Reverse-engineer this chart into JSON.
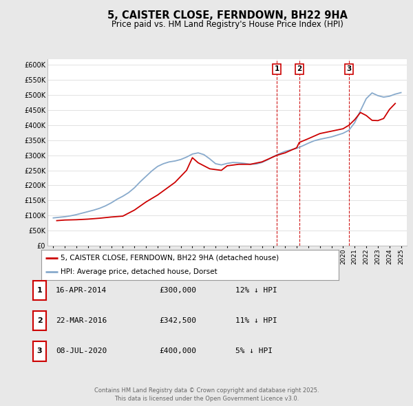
{
  "title": "5, CAISTER CLOSE, FERNDOWN, BH22 9HA",
  "subtitle": "Price paid vs. HM Land Registry's House Price Index (HPI)",
  "legend_label_red": "5, CAISTER CLOSE, FERNDOWN, BH22 9HA (detached house)",
  "legend_label_blue": "HPI: Average price, detached house, Dorset",
  "footer": "Contains HM Land Registry data © Crown copyright and database right 2025.\nThis data is licensed under the Open Government Licence v3.0.",
  "transactions": [
    {
      "num": 1,
      "date": "16-APR-2014",
      "price": "£300,000",
      "hpi": "12% ↓ HPI",
      "year": 2014.29
    },
    {
      "num": 2,
      "date": "22-MAR-2016",
      "price": "£342,500",
      "hpi": "11% ↓ HPI",
      "year": 2016.22
    },
    {
      "num": 3,
      "date": "08-JUL-2020",
      "price": "£400,000",
      "hpi": "5% ↓ HPI",
      "year": 2020.52
    }
  ],
  "ylim": [
    0,
    620000
  ],
  "yticks": [
    0,
    50000,
    100000,
    150000,
    200000,
    250000,
    300000,
    350000,
    400000,
    450000,
    500000,
    550000,
    600000
  ],
  "color_red": "#cc0000",
  "color_blue": "#88aacc",
  "background_color": "#e8e8e8",
  "plot_bg": "#ffffff",
  "hpi_x": [
    1995,
    1995.5,
    1996,
    1996.5,
    1997,
    1997.5,
    1998,
    1998.5,
    1999,
    1999.5,
    2000,
    2000.5,
    2001,
    2001.5,
    2002,
    2002.5,
    2003,
    2003.5,
    2004,
    2004.5,
    2005,
    2005.5,
    2006,
    2006.5,
    2007,
    2007.5,
    2008,
    2008.5,
    2009,
    2009.5,
    2010,
    2010.5,
    2011,
    2011.5,
    2012,
    2012.5,
    2013,
    2013.5,
    2014,
    2014.5,
    2015,
    2015.5,
    2016,
    2016.5,
    2017,
    2017.5,
    2018,
    2018.5,
    2019,
    2019.5,
    2020,
    2020.5,
    2021,
    2021.5,
    2022,
    2022.5,
    2023,
    2023.5,
    2024,
    2024.5,
    2025
  ],
  "hpi_y": [
    92000,
    94000,
    96000,
    99000,
    103000,
    108000,
    113000,
    118000,
    124000,
    132000,
    142000,
    154000,
    164000,
    176000,
    192000,
    212000,
    230000,
    248000,
    263000,
    272000,
    278000,
    281000,
    286000,
    294000,
    304000,
    308000,
    302000,
    288000,
    272000,
    268000,
    273000,
    276000,
    275000,
    273000,
    270000,
    271000,
    276000,
    285000,
    296000,
    305000,
    313000,
    318000,
    323000,
    331000,
    340000,
    348000,
    353000,
    357000,
    361000,
    367000,
    373000,
    383000,
    408000,
    448000,
    488000,
    507000,
    498000,
    493000,
    496000,
    503000,
    508000
  ],
  "price_x": [
    1995.3,
    1996.0,
    1997.0,
    1998.0,
    1999.0,
    2000.0,
    2001.0,
    2002.0,
    2003.0,
    2004.0,
    2005.5,
    2006.5,
    2007.0,
    2007.5,
    2008.5,
    2009.5,
    2010.0,
    2011.0,
    2012.0,
    2013.0,
    2014.0,
    2014.29,
    2015.0,
    2016.0,
    2016.22,
    2017.0,
    2018.0,
    2019.0,
    2020.0,
    2020.52,
    2021.0,
    2021.5,
    2022.0,
    2022.5,
    2023.0,
    2023.5,
    2024.0,
    2024.5
  ],
  "price_y": [
    83000,
    85000,
    86000,
    88000,
    91000,
    95000,
    98000,
    118000,
    145000,
    168000,
    210000,
    250000,
    292000,
    275000,
    255000,
    250000,
    265000,
    270000,
    270000,
    278000,
    295000,
    300000,
    308000,
    325000,
    342500,
    355000,
    372000,
    380000,
    388000,
    400000,
    418000,
    442000,
    432000,
    416000,
    415000,
    422000,
    452000,
    472000
  ]
}
